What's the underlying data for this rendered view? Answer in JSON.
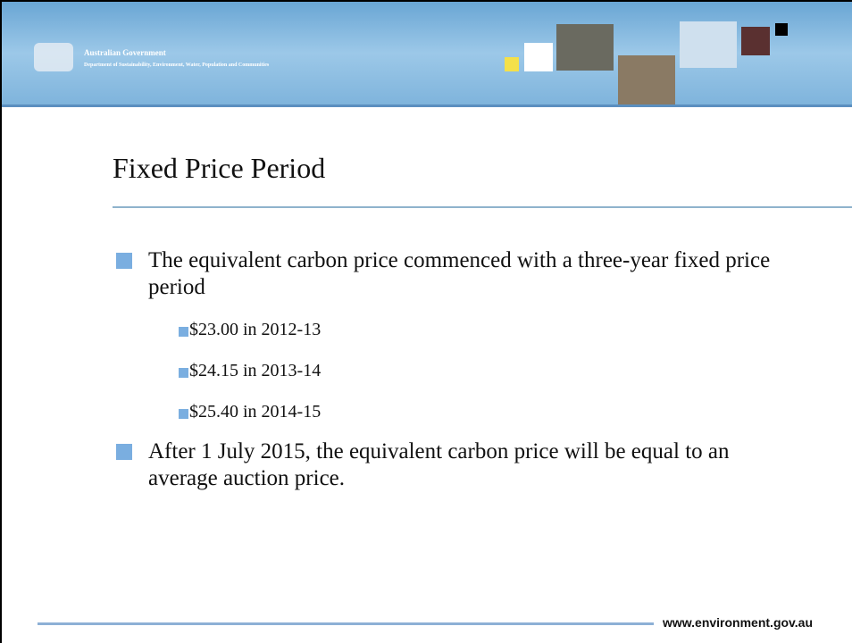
{
  "header": {
    "org": "Australian Government",
    "department": "Department of Sustainability, Environment, Water, Population and Communities"
  },
  "slide": {
    "title": "Fixed Price Period",
    "bullets": [
      {
        "text": "The equivalent carbon price commenced with a three-year fixed price period",
        "sub": [
          "$23.00 in 2012-13",
          "$24.15 in 2013-14",
          "$25.40 in 2014-15"
        ]
      },
      {
        "text": "After 1 July 2015, the equivalent carbon price will be equal to an average auction price."
      }
    ]
  },
  "footer": {
    "url": "www.environment.gov.au"
  }
}
